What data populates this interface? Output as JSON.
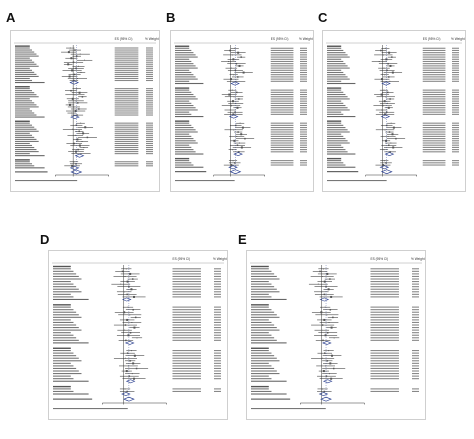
{
  "figure": {
    "panels": [
      {
        "letter": "A",
        "header_es": "ES (95% CI)",
        "header_weight": "% Weight"
      },
      {
        "letter": "B",
        "header_es": "ES (95% CI)",
        "header_weight": "% Weight"
      },
      {
        "letter": "C",
        "header_es": "ES (95% CI)",
        "header_weight": "% Weight"
      },
      {
        "letter": "D",
        "header_es": "ES (95% CI)",
        "header_weight": "% Weight"
      },
      {
        "letter": "E",
        "header_es": "ES (95% CI)",
        "header_weight": "% Weight"
      }
    ]
  },
  "chart_data": [
    {
      "type": "forest",
      "panel": "A",
      "groups": [
        {
          "studies": [
            0.92,
            1.05,
            0.88,
            1.2,
            1.1,
            0.95,
            1.32,
            1.01,
            0.86,
            1.15,
            1.08,
            0.97,
            1.22,
            1.04,
            0.9,
            1.12,
            1.02
          ],
          "pooled": 1.03
        },
        {
          "studies": [
            1.1,
            0.94,
            1.18,
            1.05,
            1.26,
            0.99,
            1.08,
            1.13,
            0.91,
            1.02,
            1.16,
            1.07,
            0.96,
            1.11
          ],
          "pooled": 1.05
        },
        {
          "studies": [
            1.21,
            1.09,
            1.34,
            0.98,
            1.17,
            1.28,
            1.06,
            1.4,
            1.12,
            1.25,
            1.03,
            1.19,
            1.3,
            1.14,
            1.08,
            1.22
          ],
          "pooled": 1.18
        },
        {
          "studies": [
            1.02,
            1.08,
            0.97
          ],
          "pooled": 1.04
        }
      ],
      "overall": 1.09,
      "xlim": [
        0.5,
        2.0
      ]
    },
    {
      "type": "forest",
      "panel": "B",
      "groups": [
        {
          "studies": [
            1.12,
            0.98,
            1.22,
            1.05,
            1.31,
            1.08,
            0.94,
            1.17,
            1.26,
            1.02,
            1.14,
            1.38,
            1.09,
            1.21,
            1.01,
            1.16
          ],
          "pooled": 1.13
        },
        {
          "studies": [
            1.05,
            1.18,
            0.96,
            1.1,
            1.24,
            1.07,
            1.15,
            1.01,
            1.2,
            0.99,
            1.13,
            1.08
          ],
          "pooled": 1.09
        },
        {
          "studies": [
            1.28,
            1.15,
            1.36,
            1.09,
            1.22,
            1.31,
            1.18,
            1.42,
            1.11,
            1.26,
            1.2,
            1.33,
            1.06,
            1.24
          ],
          "pooled": 1.22
        },
        {
          "studies": [
            1.07,
            1.12,
            1.02
          ],
          "pooled": 1.07
        }
      ],
      "overall": 1.14,
      "xlim": [
        0.5,
        2.0
      ]
    },
    {
      "type": "forest",
      "panel": "C",
      "groups": [
        {
          "studies": [
            1.08,
            0.95,
            1.19,
            1.02,
            1.27,
            1.11,
            0.9,
            1.16,
            1.23,
            1.04,
            1.13,
            1.3,
            1.06,
            1.18,
            0.98,
            1.21
          ],
          "pooled": 1.1
        },
        {
          "studies": [
            1.04,
            1.15,
            0.97,
            1.09,
            1.22,
            1.06,
            1.14,
            1.0,
            1.18,
            0.97,
            1.12,
            1.07
          ],
          "pooled": 1.08
        },
        {
          "studies": [
            1.25,
            1.12,
            1.33,
            1.07,
            1.2,
            1.29,
            1.16,
            1.39,
            1.1,
            1.24,
            1.18,
            1.31,
            1.04,
            1.22
          ],
          "pooled": 1.2
        },
        {
          "studies": [
            1.05,
            1.1,
            1.01
          ],
          "pooled": 1.05
        }
      ],
      "overall": 1.12,
      "xlim": [
        0.5,
        2.0
      ]
    },
    {
      "type": "forest",
      "panel": "D",
      "groups": [
        {
          "studies": [
            1.06,
            0.97,
            1.15,
            1.03,
            1.21,
            1.09,
            0.93,
            1.12,
            1.18,
            1.01,
            1.08,
            1.24
          ],
          "pooled": 1.07
        },
        {
          "studies": [
            1.1,
            1.22,
            1.01,
            1.14,
            1.28,
            1.08,
            1.19,
            1.04,
            1.25,
            1.02,
            1.16,
            1.11,
            1.31,
            1.05
          ],
          "pooled": 1.14
        },
        {
          "studies": [
            1.18,
            1.09,
            1.26,
            1.04,
            1.15,
            1.22,
            1.11,
            1.3,
            1.07,
            1.2,
            1.13,
            1.24
          ],
          "pooled": 1.16
        },
        {
          "studies": [
            1.03,
            1.08
          ],
          "pooled": 1.05
        }
      ],
      "overall": 1.12,
      "xlim": [
        0.5,
        2.0
      ]
    },
    {
      "type": "forest",
      "panel": "E",
      "groups": [
        {
          "studies": [
            1.04,
            0.96,
            1.13,
            1.01,
            1.19,
            1.07,
            0.92,
            1.1,
            1.16,
            0.99,
            1.06,
            1.22
          ],
          "pooled": 1.06
        },
        {
          "studies": [
            1.08,
            1.2,
            0.99,
            1.12,
            1.26,
            1.06,
            1.17,
            1.02,
            1.23,
            1.0,
            1.14,
            1.09,
            1.29,
            1.03
          ],
          "pooled": 1.12
        },
        {
          "studies": [
            1.16,
            1.07,
            1.24,
            1.02,
            1.13,
            1.2,
            1.09,
            1.28,
            1.05,
            1.18,
            1.11,
            1.22
          ],
          "pooled": 1.14
        },
        {
          "studies": [
            1.02,
            1.06
          ],
          "pooled": 1.04
        }
      ],
      "overall": 1.1,
      "xlim": [
        0.5,
        2.0
      ]
    }
  ]
}
